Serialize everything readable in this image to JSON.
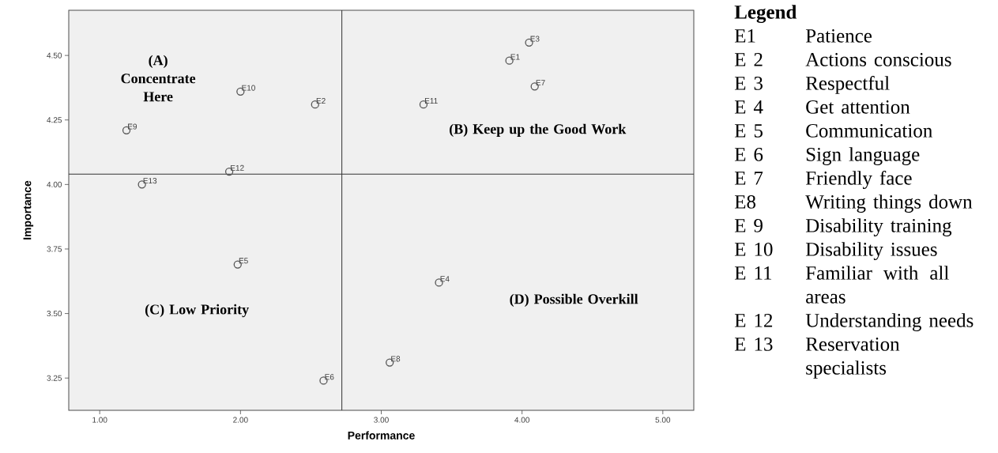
{
  "chart_data": [
    {
      "type": "scatter",
      "xlabel": "Performance",
      "ylabel": "Importance",
      "x": [
        3.91,
        2.53,
        4.05,
        3.41,
        1.98,
        2.59,
        4.09,
        3.06,
        1.19,
        2.0,
        3.3,
        1.92,
        1.3
      ],
      "values": [
        4.48,
        4.31,
        4.55,
        3.62,
        3.69,
        3.24,
        4.38,
        3.31,
        4.21,
        4.36,
        4.31,
        4.05,
        4.0
      ],
      "color": "#555555",
      "marker": "circle",
      "xlim": [
        0.78,
        5.22
      ],
      "ylim": [
        3.125,
        4.675
      ],
      "xticks": [
        {
          "value": 1,
          "label": "1.00"
        },
        {
          "value": 2,
          "label": "2.00"
        },
        {
          "value": 3,
          "label": "3.00"
        },
        {
          "value": 4,
          "label": "4.00"
        },
        {
          "value": 5,
          "label": "5.00"
        }
      ],
      "yticks": [
        {
          "value": 3.25,
          "label": "3.25"
        },
        {
          "value": 3.5,
          "label": "3.50"
        },
        {
          "value": 3.75,
          "label": "3.75"
        },
        {
          "value": 4.0,
          "label": "4.00"
        },
        {
          "value": 4.25,
          "label": "4.25"
        },
        {
          "value": 4.5,
          "label": "4.50"
        }
      ],
      "grid": false,
      "ref_lines": [
        {
          "axis": "x",
          "value": 2.72,
          "color": "#333333"
        },
        {
          "axis": "y",
          "value": 4.04,
          "color": "#333333"
        }
      ],
      "annotations": [
        "(A) Concentrate Here",
        "(B) Keep up the Good Work",
        "(C) Low Priority",
        "(D) Possible Overkill",
        {
          "text": "E1",
          "x": 3.91,
          "y": 4.48
        },
        {
          "text": "E2",
          "x": 2.53,
          "y": 4.31
        },
        {
          "text": "E3",
          "x": 4.05,
          "y": 4.55
        },
        {
          "text": "E4",
          "x": 3.41,
          "y": 3.62
        },
        {
          "text": "E5",
          "x": 1.98,
          "y": 3.69
        },
        {
          "text": "E6",
          "x": 2.59,
          "y": 3.24
        },
        {
          "text": "E7",
          "x": 4.09,
          "y": 4.38
        },
        {
          "text": "E8",
          "x": 3.06,
          "y": 3.31
        },
        {
          "text": "E9",
          "x": 1.19,
          "y": 4.21
        },
        {
          "text": "E10",
          "x": 2.0,
          "y": 4.36
        },
        {
          "text": "E11",
          "x": 3.3,
          "y": 4.31
        },
        {
          "text": "E12",
          "x": 1.92,
          "y": 4.05
        },
        {
          "text": "E13",
          "x": 1.3,
          "y": 4.0
        }
      ]
    },
    {
      "type": "other",
      "title": "Legend",
      "annotations": [
        "E1",
        "Patience",
        "E 2",
        "Actions conscious",
        "E 3",
        "Respectful",
        "E 4",
        "Get attention",
        "E 5",
        "Communication",
        "E 6",
        "Sign language",
        "E 7",
        "Friendly face",
        "E8",
        "Writing things down",
        "E 9",
        "Disability training",
        "E 10",
        "Disability issues",
        "E 11",
        "Familiar with all areas",
        "E 12",
        "Understanding needs",
        "E 13",
        "Reservation specialists"
      ]
    }
  ]
}
